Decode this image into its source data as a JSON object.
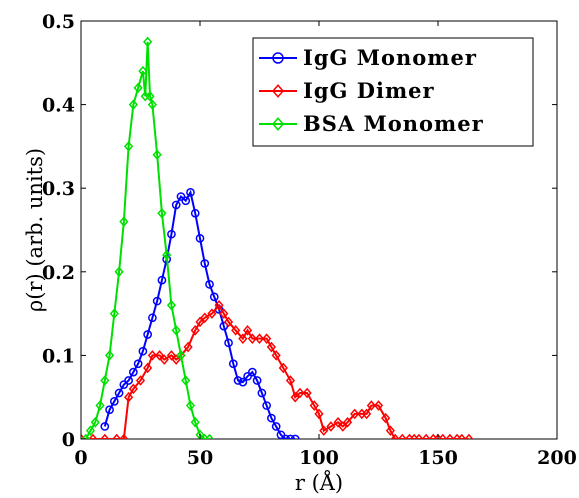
{
  "chart_data": {
    "type": "line",
    "xlabel": "r (Å)",
    "ylabel": "ρ(r) (arb. units)",
    "xlim": [
      0,
      200
    ],
    "ylim": [
      0,
      0.5
    ],
    "xticks": [
      "0",
      "50",
      "100",
      "150",
      "200"
    ],
    "yticks": [
      "0",
      "0.1",
      "0.2",
      "0.3",
      "0.4",
      "0.5"
    ],
    "grid": false,
    "legend_position": "top-right",
    "series": [
      {
        "name": "IgG Monomer",
        "color": "#0000ff",
        "marker": "circle",
        "x": [
          10,
          12,
          14,
          16,
          18,
          20,
          22,
          24,
          26,
          28,
          30,
          32,
          34,
          36,
          38,
          40,
          42,
          44,
          46,
          48,
          50,
          52,
          54,
          56,
          58,
          60,
          62,
          64,
          66,
          68,
          70,
          72,
          74,
          76,
          78,
          80,
          82,
          84,
          86,
          88,
          90
        ],
        "y": [
          0.015,
          0.035,
          0.045,
          0.055,
          0.065,
          0.07,
          0.08,
          0.09,
          0.105,
          0.125,
          0.145,
          0.165,
          0.19,
          0.215,
          0.245,
          0.28,
          0.29,
          0.285,
          0.295,
          0.27,
          0.24,
          0.21,
          0.185,
          0.17,
          0.155,
          0.135,
          0.115,
          0.09,
          0.07,
          0.068,
          0.075,
          0.08,
          0.07,
          0.055,
          0.04,
          0.025,
          0.015,
          0.005,
          0.0,
          0.0,
          0.0
        ]
      },
      {
        "name": "IgG Dimer",
        "color": "#ff0000",
        "marker": "diamond",
        "x": [
          0,
          5,
          10,
          15,
          18,
          20,
          22,
          25,
          28,
          30,
          33,
          35,
          38,
          40,
          42,
          45,
          48,
          50,
          52,
          55,
          58,
          60,
          62,
          65,
          68,
          70,
          72,
          75,
          78,
          80,
          82,
          85,
          88,
          90,
          92,
          95,
          98,
          100,
          102,
          105,
          108,
          110,
          112,
          115,
          118,
          120,
          122,
          125,
          128,
          130,
          132,
          135,
          138,
          140,
          142,
          145,
          148,
          150,
          152,
          155,
          158,
          160,
          163
        ],
        "y": [
          0,
          0,
          0,
          0,
          0,
          0.05,
          0.06,
          0.07,
          0.085,
          0.1,
          0.1,
          0.095,
          0.1,
          0.095,
          0.1,
          0.11,
          0.13,
          0.14,
          0.145,
          0.15,
          0.16,
          0.15,
          0.14,
          0.13,
          0.12,
          0.13,
          0.12,
          0.12,
          0.12,
          0.11,
          0.1,
          0.085,
          0.07,
          0.05,
          0.055,
          0.055,
          0.04,
          0.03,
          0.01,
          0.015,
          0.02,
          0.015,
          0.02,
          0.03,
          0.03,
          0.03,
          0.04,
          0.04,
          0.025,
          0.01,
          0,
          0,
          0,
          0,
          0,
          0,
          0,
          0,
          0,
          0,
          0,
          0,
          0
        ]
      },
      {
        "name": "BSA Monomer",
        "color": "#00e000",
        "marker": "diamond",
        "x": [
          2,
          4,
          6,
          8,
          10,
          12,
          14,
          16,
          18,
          20,
          22,
          24,
          26,
          27,
          28,
          29,
          30,
          32,
          34,
          36,
          38,
          40,
          42,
          44,
          46,
          48,
          50,
          52,
          54
        ],
        "y": [
          0,
          0.01,
          0.02,
          0.04,
          0.07,
          0.1,
          0.15,
          0.2,
          0.26,
          0.35,
          0.4,
          0.42,
          0.44,
          0.41,
          0.475,
          0.41,
          0.4,
          0.34,
          0.27,
          0.22,
          0.16,
          0.13,
          0.1,
          0.07,
          0.04,
          0.02,
          0.005,
          0,
          0
        ]
      }
    ]
  }
}
